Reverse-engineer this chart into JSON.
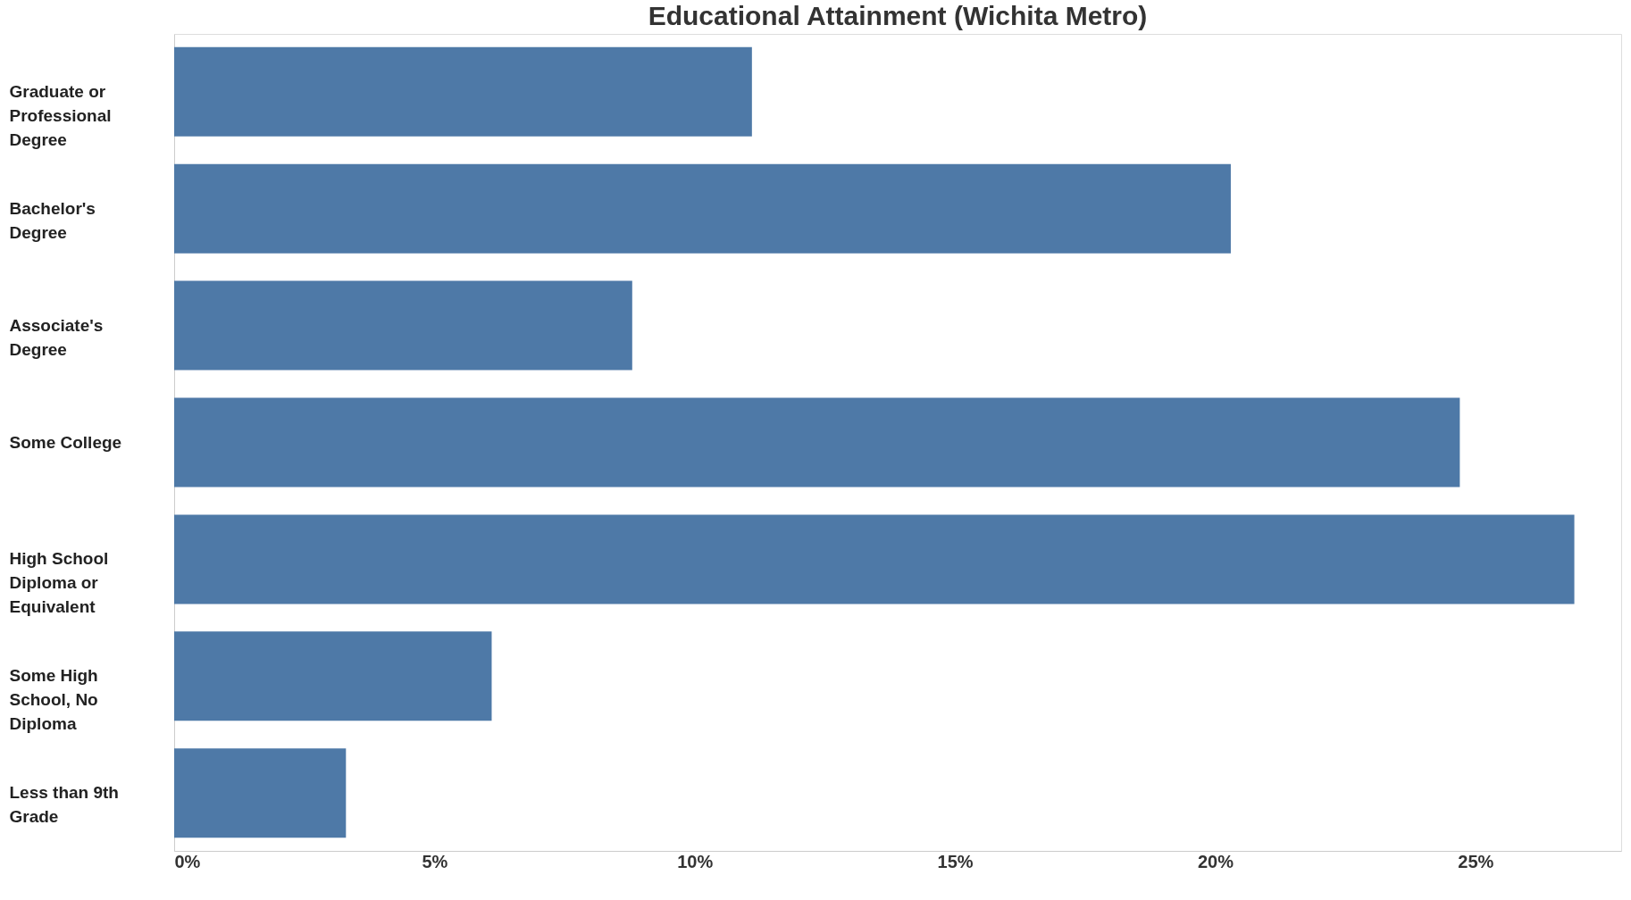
{
  "chart_data": {
    "type": "bar",
    "orientation": "horizontal",
    "title": "Educational Attainment (Wichita Metro)",
    "categories": [
      "Graduate or Professional Degree",
      "Bachelor's Degree",
      "Associate's Degree",
      "Some College",
      "High School Diploma or Equivalent",
      "Some High School, No Diploma",
      "Less than 9th Grade"
    ],
    "values": [
      11.1,
      20.3,
      8.8,
      24.7,
      26.9,
      6.1,
      3.3
    ],
    "color": "#4e79a7",
    "xlim": [
      0,
      27.8
    ],
    "xticks": [
      {
        "value": 0,
        "label": "0%"
      },
      {
        "value": 5,
        "label": "5%"
      },
      {
        "value": 10,
        "label": "10%"
      },
      {
        "value": 15,
        "label": "15%"
      },
      {
        "value": 20,
        "label": "20%"
      },
      {
        "value": 25,
        "label": "25%"
      }
    ],
    "grid": false
  }
}
